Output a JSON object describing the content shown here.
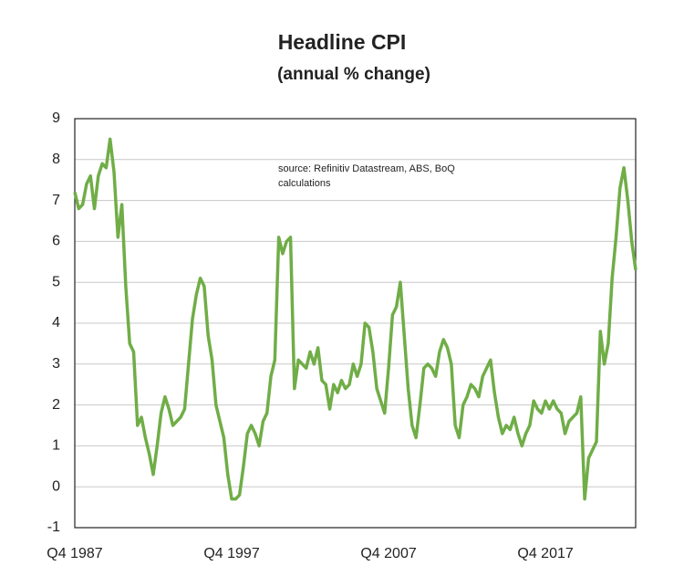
{
  "chart_data": {
    "type": "line",
    "title": "Headline CPI",
    "subtitle": "(annual % change)",
    "annotation": "source:  Refinitiv Datastream, ABS, BoQ calculations",
    "categories": [
      "Q4 1987",
      null,
      null,
      null,
      null,
      null,
      null,
      null,
      null,
      null,
      null,
      null,
      null,
      null,
      null,
      null,
      null,
      null,
      null,
      null,
      null,
      null,
      null,
      null,
      null,
      null,
      null,
      null,
      null,
      null,
      null,
      null,
      null,
      null,
      null,
      null,
      null,
      null,
      null,
      null,
      "Q4 1997",
      null,
      null,
      null,
      null,
      null,
      null,
      null,
      null,
      null,
      null,
      null,
      null,
      null,
      null,
      null,
      null,
      null,
      null,
      null,
      null,
      null,
      null,
      null,
      null,
      null,
      null,
      null,
      null,
      null,
      null,
      null,
      null,
      null,
      null,
      null,
      null,
      null,
      null,
      null,
      "Q4 2007",
      null,
      null,
      null,
      null,
      null,
      null,
      null,
      null,
      null,
      null,
      null,
      null,
      null,
      null,
      null,
      null,
      null,
      null,
      null,
      null,
      null,
      null,
      null,
      null,
      null,
      null,
      null,
      null,
      null,
      null,
      null,
      null,
      null,
      null,
      null,
      null,
      null,
      null,
      null,
      "Q4 2017",
      null,
      null,
      null,
      null,
      null,
      null,
      null,
      null,
      null,
      null,
      null,
      null,
      null,
      null,
      null,
      null,
      null,
      null,
      null,
      null,
      null,
      null,
      null
    ],
    "values": [
      7.2,
      6.8,
      6.9,
      7.4,
      7.6,
      6.8,
      7.6,
      7.9,
      7.8,
      8.5,
      7.7,
      6.1,
      6.9,
      4.9,
      3.5,
      3.3,
      1.5,
      1.7,
      1.2,
      0.8,
      0.3,
      1.0,
      1.8,
      2.2,
      1.9,
      1.5,
      1.6,
      1.7,
      1.9,
      3.0,
      4.1,
      4.7,
      5.1,
      4.9,
      3.7,
      3.1,
      2.0,
      1.6,
      1.2,
      0.3,
      -0.3,
      -0.3,
      -0.2,
      0.5,
      1.3,
      1.5,
      1.3,
      1.0,
      1.6,
      1.8,
      2.7,
      3.1,
      6.1,
      5.7,
      6.0,
      6.1,
      2.4,
      3.1,
      3.0,
      2.9,
      3.3,
      3.0,
      3.4,
      2.6,
      2.5,
      1.9,
      2.5,
      2.3,
      2.6,
      2.4,
      2.5,
      3.0,
      2.7,
      3.0,
      4.0,
      3.9,
      3.3,
      2.4,
      2.1,
      1.8,
      2.9,
      4.2,
      4.4,
      5.0,
      3.7,
      2.4,
      1.5,
      1.2,
      2.0,
      2.9,
      3.0,
      2.9,
      2.7,
      3.3,
      3.6,
      3.4,
      3.0,
      1.5,
      1.2,
      2.0,
      2.2,
      2.5,
      2.4,
      2.2,
      2.7,
      2.9,
      3.1,
      2.3,
      1.7,
      1.3,
      1.5,
      1.4,
      1.7,
      1.3,
      1.0,
      1.3,
      1.5,
      2.1,
      1.9,
      1.8,
      2.1,
      1.9,
      2.1,
      1.9,
      1.8,
      1.3,
      1.6,
      1.7,
      1.8,
      2.2,
      -0.3,
      0.7,
      0.9,
      1.1,
      3.8,
      3.0,
      3.5,
      5.1,
      6.1,
      7.3,
      7.8,
      7.0,
      6.0,
      5.3
    ],
    "color": "#70ad47",
    "ylim": [
      -1,
      9
    ],
    "yticks": [
      -1,
      0,
      1,
      2,
      3,
      4,
      5,
      6,
      7,
      8,
      9
    ],
    "grid": true
  }
}
